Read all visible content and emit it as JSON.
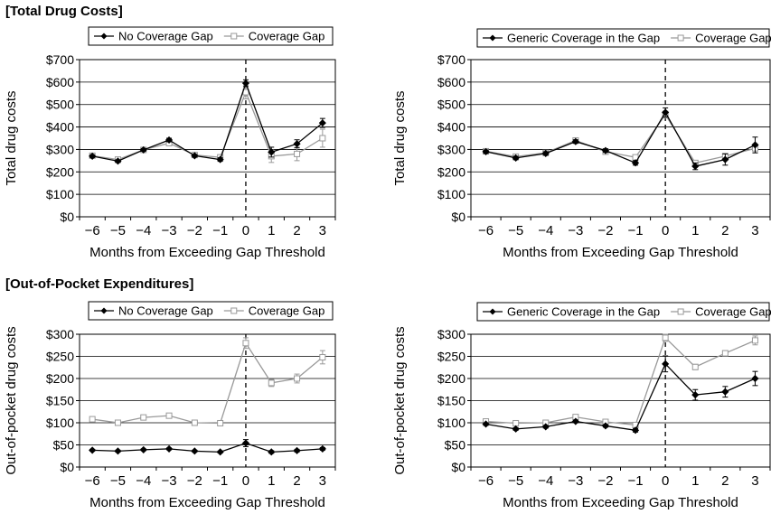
{
  "sections": {
    "top_title": "[Total Drug Costs]",
    "bottom_title": "[Out-of-Pocket Expenditures]"
  },
  "colors": {
    "series_black": "#000000",
    "series_gray": "#999999"
  },
  "chart_data": [
    {
      "type": "line",
      "xlabel": "Months from Exceeding Gap Threshold",
      "ylabel": "Total drug costs",
      "x": [
        -6,
        -5,
        -4,
        -3,
        -2,
        -1,
        0,
        1,
        2,
        3
      ],
      "x_tick_labels": [
        "−6",
        "−5",
        "−4",
        "−3",
        "−2",
        "−1",
        "0",
        "1",
        "2",
        "3"
      ],
      "ylim": [
        0,
        700
      ],
      "y_ticks": [
        0,
        100,
        200,
        300,
        400,
        500,
        600,
        700
      ],
      "y_tick_labels": [
        "$0",
        "$100",
        "$200",
        "$300",
        "$400",
        "$500",
        "$600",
        "$700"
      ],
      "grid": true,
      "vertical_reference_x": 0,
      "legend_position": "top-left",
      "series": [
        {
          "name": "No Coverage Gap",
          "marker": "diamond",
          "color": "#000000",
          "values": [
            270,
            248,
            298,
            342,
            272,
            255,
            595,
            288,
            325,
            418
          ],
          "errors": [
            6,
            6,
            6,
            8,
            6,
            8,
            15,
            22,
            18,
            20
          ]
        },
        {
          "name": "Coverage Gap",
          "marker": "square",
          "color": "#999999",
          "values": [
            272,
            255,
            298,
            328,
            275,
            265,
            555,
            270,
            280,
            350
          ],
          "errors": [
            6,
            6,
            6,
            8,
            6,
            8,
            30,
            28,
            30,
            40
          ]
        }
      ]
    },
    {
      "type": "line",
      "xlabel": "Months from Exceeding Gap Threshold",
      "ylabel": "Total drug costs",
      "x": [
        -6,
        -5,
        -4,
        -3,
        -2,
        -1,
        0,
        1,
        2,
        3
      ],
      "x_tick_labels": [
        "−6",
        "−5",
        "−4",
        "−3",
        "−2",
        "−1",
        "0",
        "1",
        "2",
        "3"
      ],
      "ylim": [
        0,
        700
      ],
      "y_ticks": [
        0,
        100,
        200,
        300,
        400,
        500,
        600,
        700
      ],
      "y_tick_labels": [
        "$0",
        "$100",
        "$200",
        "$300",
        "$400",
        "$500",
        "$600",
        "$700"
      ],
      "grid": true,
      "vertical_reference_x": 0,
      "legend_position": "top-right",
      "series": [
        {
          "name": "Generic Coverage in the Gap",
          "marker": "diamond",
          "color": "#000000",
          "values": [
            290,
            262,
            282,
            335,
            295,
            240,
            465,
            225,
            255,
            320
          ],
          "errors": [
            8,
            8,
            8,
            8,
            8,
            10,
            20,
            15,
            25,
            35
          ]
        },
        {
          "name": "Coverage Gap",
          "marker": "square",
          "color": "#999999",
          "values": [
            292,
            268,
            285,
            340,
            290,
            265,
            455,
            240,
            270,
            305
          ],
          "errors": [
            8,
            8,
            8,
            8,
            8,
            10,
            15,
            10,
            12,
            20
          ]
        }
      ]
    },
    {
      "type": "line",
      "xlabel": "Months from Exceeding Gap Threshold",
      "ylabel": "Out-of-pocket drug costs",
      "x": [
        -6,
        -5,
        -4,
        -3,
        -2,
        -1,
        0,
        1,
        2,
        3
      ],
      "x_tick_labels": [
        "−6",
        "−5",
        "−4",
        "−3",
        "−2",
        "−1",
        "0",
        "1",
        "2",
        "3"
      ],
      "ylim": [
        0,
        300
      ],
      "y_ticks": [
        0,
        50,
        100,
        150,
        200,
        250,
        300
      ],
      "y_tick_labels": [
        "$0",
        "$50",
        "$100",
        "$150",
        "$200",
        "$250",
        "$300"
      ],
      "grid": true,
      "vertical_reference_x": 0,
      "legend_position": "top-left",
      "series": [
        {
          "name": "No Coverage Gap",
          "marker": "diamond",
          "color": "#000000",
          "values": [
            38,
            36,
            39,
            41,
            36,
            34,
            54,
            34,
            37,
            41
          ],
          "errors": [
            2,
            2,
            2,
            2,
            2,
            2,
            8,
            3,
            3,
            3
          ]
        },
        {
          "name": "Coverage Gap",
          "marker": "square",
          "color": "#999999",
          "values": [
            108,
            100,
            112,
            116,
            100,
            99,
            280,
            190,
            200,
            248
          ],
          "errors": [
            3,
            3,
            3,
            3,
            3,
            4,
            12,
            8,
            10,
            15
          ]
        }
      ]
    },
    {
      "type": "line",
      "xlabel": "Months from Exceeding Gap Threshold",
      "ylabel": "Out-of-pocket drug costs",
      "x": [
        -6,
        -5,
        -4,
        -3,
        -2,
        -1,
        0,
        1,
        2,
        3
      ],
      "x_tick_labels": [
        "−6",
        "−5",
        "−4",
        "−3",
        "−2",
        "−1",
        "0",
        "1",
        "2",
        "3"
      ],
      "ylim": [
        0,
        300
      ],
      "y_ticks": [
        0,
        50,
        100,
        150,
        200,
        250,
        300
      ],
      "y_tick_labels": [
        "$0",
        "$50",
        "$100",
        "$150",
        "$200",
        "$250",
        "$300"
      ],
      "grid": true,
      "vertical_reference_x": 0,
      "legend_position": "top-right",
      "series": [
        {
          "name": "Generic Coverage in the Gap",
          "marker": "diamond",
          "color": "#000000",
          "values": [
            97,
            86,
            91,
            103,
            93,
            83,
            233,
            163,
            170,
            200
          ],
          "errors": [
            3,
            3,
            3,
            3,
            3,
            4,
            18,
            12,
            12,
            16
          ]
        },
        {
          "name": "Coverage Gap",
          "marker": "square",
          "color": "#999999",
          "values": [
            103,
            99,
            100,
            113,
            102,
            95,
            292,
            226,
            257,
            286
          ],
          "errors": [
            3,
            3,
            3,
            3,
            3,
            4,
            8,
            6,
            6,
            10
          ]
        }
      ]
    }
  ]
}
